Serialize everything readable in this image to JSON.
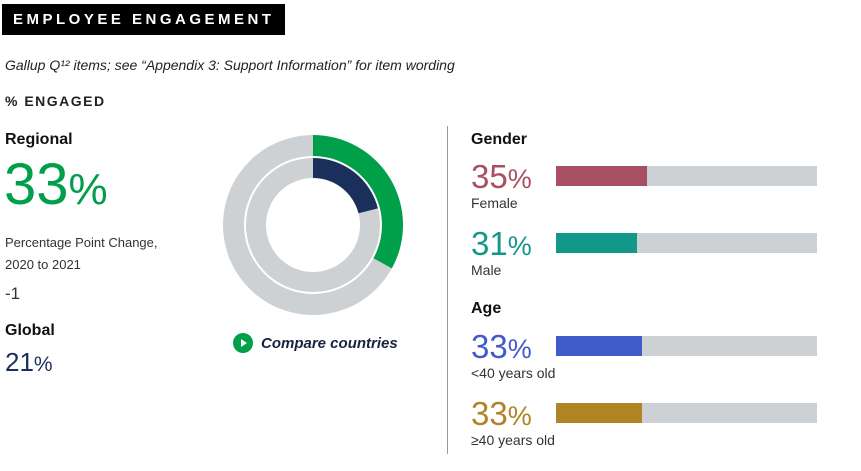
{
  "header": {
    "title": "EMPLOYEE ENGAGEMENT",
    "subtitle": "Gallup Q¹² items; see “Appendix 3: Support Information” for item wording",
    "section": "% ENGAGED"
  },
  "regional": {
    "label": "Regional",
    "value": "33",
    "pct": "%",
    "change_label_1": "Percentage Point Change,",
    "change_label_2": "2020 to 2021",
    "change_value": "-1"
  },
  "global": {
    "label": "Global",
    "value": "21",
    "pct": "%"
  },
  "compare": {
    "label": "Compare countries",
    "icon": "play-circle-icon"
  },
  "colors": {
    "regional": "#00a04b",
    "global": "#1b2f5c",
    "track": "#ced1d4",
    "female": "#a84f64",
    "male": "#12988a",
    "under40": "#415bc8",
    "over40": "#b08324"
  },
  "chart_data": [
    {
      "type": "pie",
      "title": "% Engaged",
      "series": [
        {
          "name": "Regional",
          "value": 33
        },
        {
          "name": "Global",
          "value": 21
        }
      ],
      "max": 100
    },
    {
      "type": "bar",
      "orientation": "horizontal",
      "groups": [
        {
          "label": "Gender",
          "items": [
            {
              "label": "Female",
              "value": 35,
              "pct": "%"
            },
            {
              "label": "Male",
              "value": 31,
              "pct": "%"
            }
          ]
        },
        {
          "label": "Age",
          "items": [
            {
              "label": "<40 years old",
              "value": 33,
              "pct": "%"
            },
            {
              "label": "≥40 years old",
              "value": 33,
              "pct": "%"
            }
          ]
        }
      ],
      "xlim": [
        0,
        100
      ]
    }
  ]
}
